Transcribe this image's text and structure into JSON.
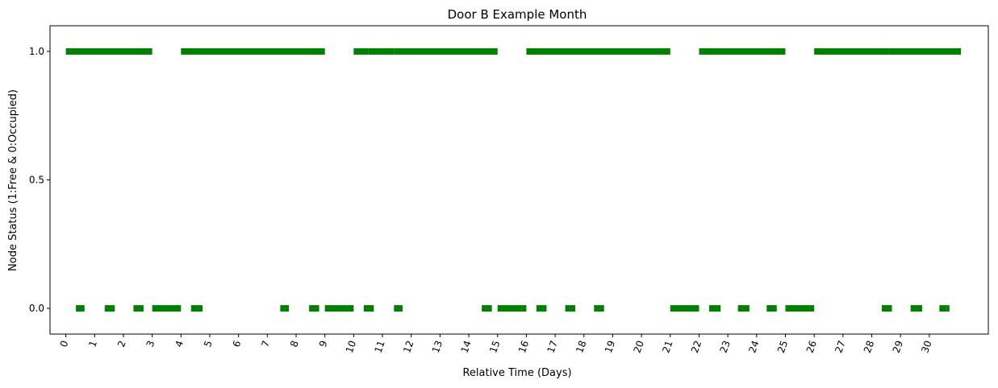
{
  "chart_data": {
    "type": "timeline",
    "title": "Door B Example Month",
    "xlabel": "Relative Time (Days)",
    "ylabel": "Node Status (1:Free & 0:Occupied)",
    "xlim": [
      -0.55,
      32.05
    ],
    "ylim": [
      -0.1,
      1.1
    ],
    "x_ticks": [
      0,
      1,
      2,
      3,
      4,
      5,
      6,
      7,
      8,
      9,
      10,
      11,
      12,
      13,
      14,
      15,
      16,
      17,
      18,
      19,
      20,
      21,
      22,
      23,
      24,
      25,
      26,
      27,
      28,
      29,
      30
    ],
    "x_tick_labels": [
      "0",
      "1",
      "2",
      "3",
      "4",
      "5",
      "6",
      "7",
      "8",
      "9",
      "10",
      "11",
      "12",
      "13",
      "14",
      "15",
      "16",
      "17",
      "18",
      "19",
      "20",
      "21",
      "22",
      "23",
      "24",
      "25",
      "26",
      "27",
      "28",
      "29",
      "30"
    ],
    "y_ticks": [
      0.0,
      0.5,
      1.0
    ],
    "y_tick_labels": [
      "0.0",
      "0.5",
      "1.0"
    ],
    "grid": false,
    "color": "#008000",
    "series": [
      {
        "status": 1,
        "segments": [
          [
            0,
            3
          ],
          [
            4,
            9
          ],
          [
            10,
            10.5
          ],
          [
            10.5,
            11.4
          ],
          [
            11.4,
            15
          ],
          [
            16,
            21
          ],
          [
            22,
            25
          ],
          [
            26,
            28.6
          ],
          [
            28.6,
            31.1
          ]
        ]
      },
      {
        "status": 0,
        "segments": [
          [
            0.35,
            0.65
          ],
          [
            1.35,
            1.7
          ],
          [
            2.35,
            2.7
          ],
          [
            3,
            4
          ],
          [
            4.35,
            4.75
          ],
          [
            7.45,
            7.75
          ],
          [
            8.45,
            8.8
          ],
          [
            9,
            10
          ],
          [
            10.35,
            10.7
          ],
          [
            11.4,
            11.6
          ],
          [
            11.6,
            11.7
          ],
          [
            14.45,
            14.8
          ],
          [
            15,
            16
          ],
          [
            16.35,
            16.7
          ],
          [
            17.35,
            17.7
          ],
          [
            18.35,
            18.7
          ],
          [
            21,
            22
          ],
          [
            22.35,
            22.75
          ],
          [
            23.35,
            23.75
          ],
          [
            24.35,
            24.7
          ],
          [
            25,
            26
          ],
          [
            28.35,
            28.7
          ],
          [
            29.35,
            29.75
          ],
          [
            30.35,
            30.6
          ],
          [
            30.6,
            30.7
          ]
        ]
      }
    ]
  }
}
